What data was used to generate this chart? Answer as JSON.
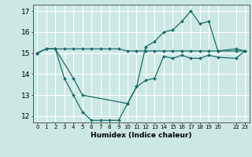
{
  "xlabel": "Humidex (Indice chaleur)",
  "background_color": "#cce8e4",
  "grid_color": "#ffffff",
  "line_color": "#1a6b6b",
  "xlim": [
    -0.5,
    23.5
  ],
  "ylim": [
    11.7,
    17.3
  ],
  "yticks": [
    12,
    13,
    14,
    15,
    16,
    17
  ],
  "xticks": [
    0,
    1,
    2,
    3,
    4,
    5,
    6,
    7,
    8,
    9,
    10,
    11,
    12,
    13,
    14,
    15,
    16,
    17,
    18,
    19,
    20,
    22,
    23
  ],
  "xtick_labels": [
    "0",
    "1",
    "2",
    "3",
    "4",
    "5",
    "6",
    "7",
    "8",
    "9",
    "10",
    "11",
    "12",
    "13",
    "14",
    "15",
    "16",
    "17",
    "18",
    "19",
    "20",
    "22",
    "23"
  ],
  "line1_x": [
    0,
    1,
    2,
    3,
    4,
    5,
    6,
    7,
    8,
    9,
    10,
    11,
    12,
    13,
    14,
    15,
    16,
    17,
    18,
    19,
    20,
    22,
    23
  ],
  "line1_y": [
    15.0,
    15.2,
    15.2,
    15.2,
    15.2,
    15.2,
    15.2,
    15.2,
    15.2,
    15.2,
    15.1,
    15.1,
    15.1,
    15.1,
    15.1,
    15.1,
    15.1,
    15.1,
    15.1,
    15.1,
    15.1,
    15.1,
    15.1
  ],
  "line2_x": [
    0,
    1,
    2,
    3,
    4,
    5,
    6,
    7,
    8,
    9,
    10,
    11,
    12,
    13,
    14,
    15,
    16,
    17,
    18,
    19,
    20,
    22,
    23
  ],
  "line2_y": [
    15.0,
    15.2,
    15.2,
    13.8,
    13.0,
    12.2,
    11.8,
    11.8,
    11.8,
    11.8,
    12.6,
    13.4,
    13.7,
    13.8,
    14.85,
    14.75,
    14.9,
    14.75,
    14.75,
    14.9,
    14.8,
    14.75,
    15.1
  ],
  "line3_x": [
    0,
    1,
    2,
    4,
    5,
    10,
    11,
    12,
    13,
    14,
    15,
    16,
    17,
    18,
    19,
    20,
    22,
    23
  ],
  "line3_y": [
    15.0,
    15.2,
    15.2,
    13.8,
    13.0,
    12.6,
    13.4,
    15.3,
    15.55,
    16.0,
    16.1,
    16.5,
    17.0,
    16.4,
    16.5,
    15.1,
    15.2,
    15.1
  ]
}
